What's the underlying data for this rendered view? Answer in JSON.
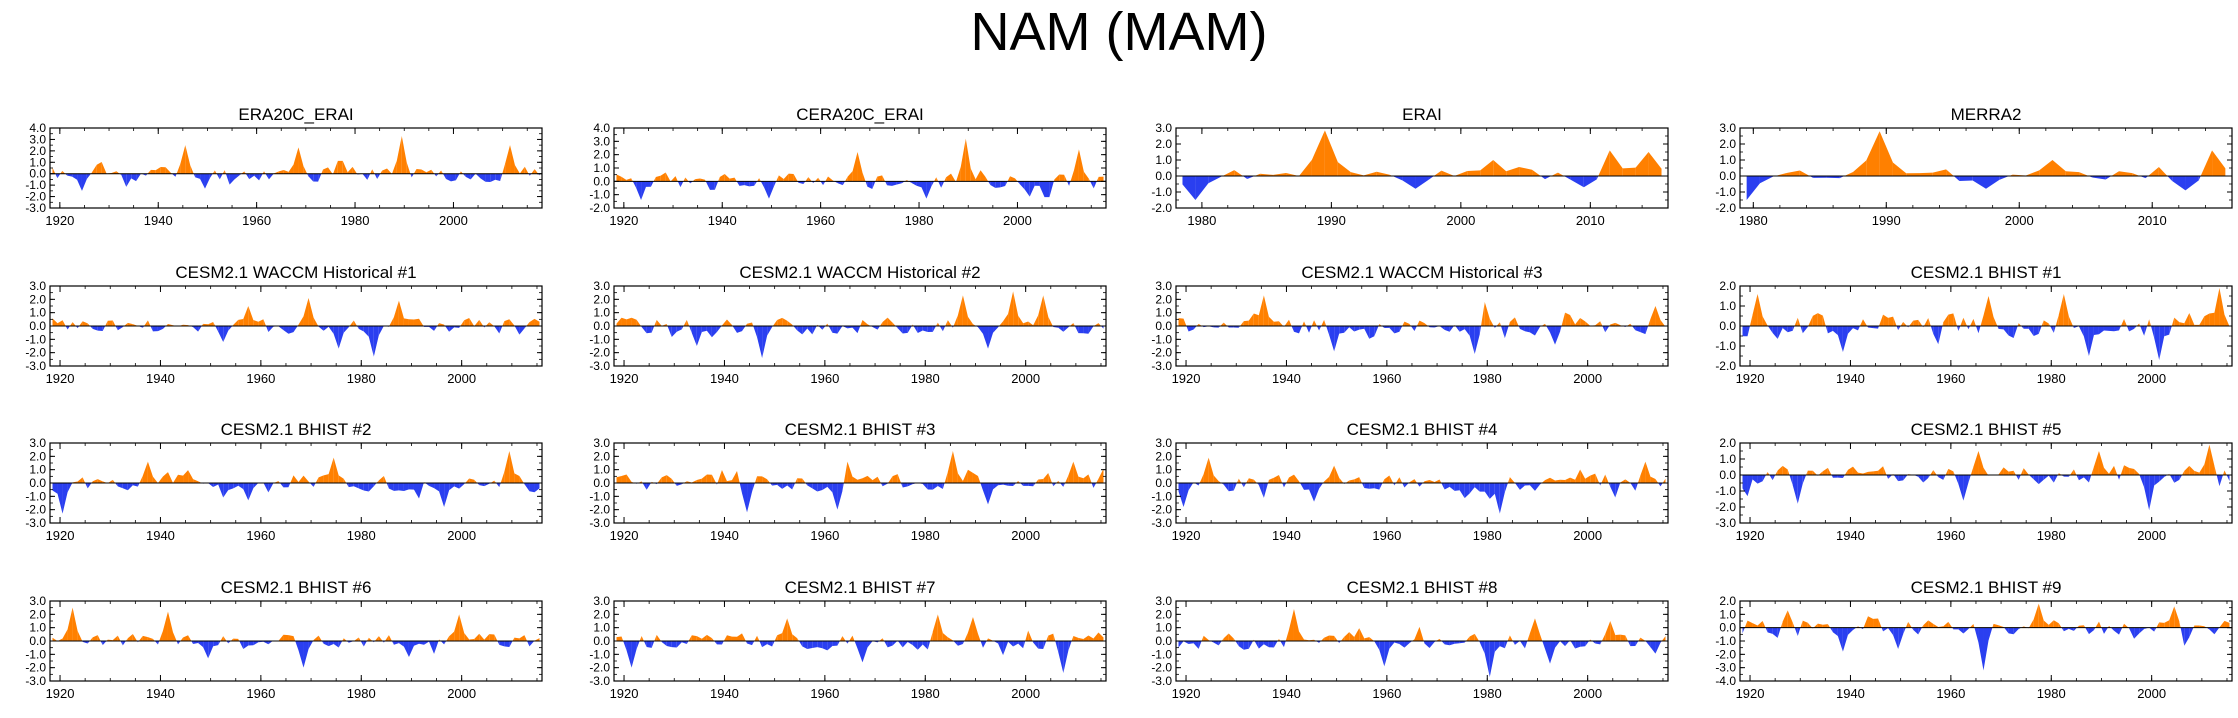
{
  "figure_title": "NAM (MAM)",
  "colors": {
    "positive": "#ff8000",
    "negative": "#2a3ff0",
    "axis": "#000000"
  },
  "chart_data": [
    {
      "type": "area",
      "title": "ERA20C_ERAI",
      "xlim": [
        1918,
        2018
      ],
      "ylim": [
        -3.0,
        4.0
      ],
      "yticks": [
        "4.0",
        "3.0",
        "2.0",
        "1.0",
        "0.0",
        "-1.0",
        "-2.0",
        "-3.0"
      ],
      "yvals": [
        4,
        3,
        2,
        1,
        0,
        -1,
        -2,
        -3
      ],
      "xticks": [
        1920,
        1940,
        1960,
        1980,
        2000
      ],
      "seed": 11,
      "amp": 1.0,
      "peaks": [
        [
          1990,
          3.3
        ],
        [
          2012,
          2.5
        ],
        [
          1946,
          2.5
        ],
        [
          1969,
          2.3
        ],
        [
          1925,
          -1.5
        ],
        [
          1950,
          -1.3
        ]
      ]
    },
    {
      "type": "area",
      "title": "CERA20C_ERAI",
      "xlim": [
        1918,
        2018
      ],
      "ylim": [
        -2.0,
        4.0
      ],
      "yticks": [
        "4.0",
        "3.0",
        "2.0",
        "1.0",
        "0.0",
        "-1.0",
        "-2.0"
      ],
      "yvals": [
        4,
        3,
        2,
        1,
        0,
        -1,
        -2
      ],
      "xticks": [
        1920,
        1940,
        1960,
        1980,
        2000
      ],
      "seed": 23,
      "amp": 0.9,
      "peaks": [
        [
          1990,
          3.2
        ],
        [
          2013,
          2.4
        ],
        [
          1968,
          2.2
        ],
        [
          1924,
          -1.4
        ],
        [
          1950,
          -1.3
        ],
        [
          1982,
          -1.3
        ]
      ]
    },
    {
      "type": "area",
      "title": "ERAI",
      "xlim": [
        1978,
        2016
      ],
      "ylim": [
        -2.0,
        3.0
      ],
      "yticks": [
        "3.0",
        "2.0",
        "1.0",
        "0.0",
        "-1.0",
        "-2.0"
      ],
      "yvals": [
        3,
        2,
        1,
        0,
        -1,
        -2
      ],
      "xticks": [
        1980,
        1990,
        2000,
        2010
      ],
      "step": 1,
      "seed": 31,
      "amp": 0.6,
      "peaks": [
        [
          1990,
          2.9
        ],
        [
          2012,
          1.6
        ],
        [
          2015,
          1.5
        ],
        [
          2003,
          1.0
        ],
        [
          1980,
          -1.5
        ],
        [
          1997,
          -0.8
        ],
        [
          2010,
          -0.7
        ]
      ]
    },
    {
      "type": "area",
      "title": "MERRA2",
      "xlim": [
        1979,
        2016
      ],
      "ylim": [
        -2.0,
        3.0
      ],
      "yticks": [
        "3.0",
        "2.0",
        "1.0",
        "0.0",
        "-1.0",
        "-2.0"
      ],
      "yvals": [
        3,
        2,
        1,
        0,
        -1,
        -2
      ],
      "xticks": [
        1980,
        1990,
        2000,
        2010
      ],
      "step": 1,
      "seed": 37,
      "amp": 0.6,
      "peaks": [
        [
          1990,
          2.8
        ],
        [
          2012,
          1.6
        ],
        [
          2015,
          1.6
        ],
        [
          2003,
          1.0
        ],
        [
          1980,
          -1.5
        ],
        [
          1998,
          -0.8
        ],
        [
          2013,
          -0.9
        ]
      ]
    },
    {
      "type": "area",
      "title": "CESM2.1 WACCM Historical #1",
      "xlim": [
        1918,
        2016
      ],
      "ylim": [
        -3.0,
        3.0
      ],
      "yticks": [
        "3.0",
        "2.0",
        "1.0",
        "0.0",
        "-1.0",
        "-2.0",
        "-3.0"
      ],
      "yvals": [
        3,
        2,
        1,
        0,
        -1,
        -2,
        -3
      ],
      "xticks": [
        1920,
        1940,
        1960,
        1980,
        2000
      ],
      "seed": 41,
      "amp": 0.9,
      "peaks": [
        [
          1970,
          2.1
        ],
        [
          1988,
          1.9
        ],
        [
          1958,
          1.5
        ],
        [
          1983,
          -2.3
        ],
        [
          1976,
          -1.7
        ],
        [
          1953,
          -1.2
        ]
      ]
    },
    {
      "type": "area",
      "title": "CESM2.1 WACCM Historical #2",
      "xlim": [
        1918,
        2016
      ],
      "ylim": [
        -3.0,
        3.0
      ],
      "yticks": [
        "3.0",
        "2.0",
        "1.0",
        "0.0",
        "-1.0",
        "-2.0",
        "-3.0"
      ],
      "yvals": [
        3,
        2,
        1,
        0,
        -1,
        -2,
        -3
      ],
      "xticks": [
        1920,
        1940,
        1960,
        1980,
        2000
      ],
      "seed": 43,
      "amp": 0.9,
      "peaks": [
        [
          1998,
          2.6
        ],
        [
          1988,
          2.3
        ],
        [
          2004,
          2.3
        ],
        [
          1948,
          -2.4
        ],
        [
          1935,
          -1.5
        ],
        [
          1993,
          -1.7
        ]
      ]
    },
    {
      "type": "area",
      "title": "CESM2.1 WACCM Historical #3",
      "xlim": [
        1918,
        2016
      ],
      "ylim": [
        -3.0,
        3.0
      ],
      "yticks": [
        "3.0",
        "2.0",
        "1.0",
        "0.0",
        "-1.0",
        "-2.0",
        "-3.0"
      ],
      "yvals": [
        3,
        2,
        1,
        0,
        -1,
        -2,
        -3
      ],
      "xticks": [
        1920,
        1940,
        1960,
        1980,
        2000
      ],
      "seed": 47,
      "amp": 0.9,
      "peaks": [
        [
          1936,
          2.3
        ],
        [
          1980,
          1.8
        ],
        [
          2014,
          1.5
        ],
        [
          1978,
          -2.1
        ],
        [
          1950,
          -1.9
        ],
        [
          1994,
          -1.4
        ]
      ]
    },
    {
      "type": "area",
      "title": "CESM2.1 BHIST #1",
      "xlim": [
        1918,
        2016
      ],
      "ylim": [
        -2.0,
        2.0
      ],
      "yticks": [
        "2.0",
        "1.0",
        "0.0",
        "-1.0",
        "-2.0"
      ],
      "yvals": [
        2,
        1,
        0,
        -1,
        -2
      ],
      "xticks": [
        1920,
        1940,
        1960,
        1980,
        2000
      ],
      "seed": 53,
      "amp": 0.8,
      "peaks": [
        [
          1922,
          1.6
        ],
        [
          1968,
          1.5
        ],
        [
          1983,
          1.6
        ],
        [
          2014,
          1.9
        ],
        [
          1939,
          -1.3
        ],
        [
          1988,
          -1.5
        ],
        [
          2002,
          -1.7
        ]
      ]
    },
    {
      "type": "area",
      "title": "CESM2.1 BHIST #2",
      "xlim": [
        1918,
        2016
      ],
      "ylim": [
        -3.0,
        3.0
      ],
      "yticks": [
        "3.0",
        "2.0",
        "1.0",
        "0.0",
        "-1.0",
        "-2.0",
        "-3.0"
      ],
      "yvals": [
        3,
        2,
        1,
        0,
        -1,
        -2,
        -3
      ],
      "xticks": [
        1920,
        1940,
        1960,
        1980,
        2000
      ],
      "seed": 59,
      "amp": 0.9,
      "peaks": [
        [
          2010,
          2.4
        ],
        [
          1975,
          1.9
        ],
        [
          1938,
          1.6
        ],
        [
          1921,
          -2.3
        ],
        [
          1997,
          -1.8
        ],
        [
          1958,
          -1.3
        ]
      ]
    },
    {
      "type": "area",
      "title": "CESM2.1 BHIST #3",
      "xlim": [
        1918,
        2016
      ],
      "ylim": [
        -3.0,
        3.0
      ],
      "yticks": [
        "3.0",
        "2.0",
        "1.0",
        "0.0",
        "-1.0",
        "-2.0",
        "-3.0"
      ],
      "yvals": [
        3,
        2,
        1,
        0,
        -1,
        -2,
        -3
      ],
      "xticks": [
        1920,
        1940,
        1960,
        1980,
        2000
      ],
      "seed": 61,
      "amp": 0.9,
      "peaks": [
        [
          1986,
          2.4
        ],
        [
          1965,
          1.6
        ],
        [
          2010,
          1.6
        ],
        [
          1945,
          -2.2
        ],
        [
          1963,
          -2.0
        ],
        [
          1993,
          -1.6
        ]
      ]
    },
    {
      "type": "area",
      "title": "CESM2.1 BHIST #4",
      "xlim": [
        1918,
        2016
      ],
      "ylim": [
        -3.0,
        3.0
      ],
      "yticks": [
        "3.0",
        "2.0",
        "1.0",
        "0.0",
        "-1.0",
        "-2.0",
        "-3.0"
      ],
      "yvals": [
        3,
        2,
        1,
        0,
        -1,
        -2,
        -3
      ],
      "xticks": [
        1920,
        1940,
        1960,
        1980,
        2000
      ],
      "seed": 67,
      "amp": 0.9,
      "peaks": [
        [
          1925,
          1.9
        ],
        [
          1950,
          1.3
        ],
        [
          2012,
          1.6
        ],
        [
          1983,
          -2.3
        ],
        [
          1920,
          -1.8
        ],
        [
          1946,
          -1.4
        ]
      ]
    },
    {
      "type": "area",
      "title": "CESM2.1 BHIST #5",
      "xlim": [
        1918,
        2016
      ],
      "ylim": [
        -3.0,
        2.0
      ],
      "yticks": [
        "2.0",
        "1.0",
        "0.0",
        "-1.0",
        "-2.0",
        "-3.0"
      ],
      "yvals": [
        2,
        1,
        0,
        -1,
        -2,
        -3
      ],
      "xticks": [
        1920,
        1940,
        1960,
        1980,
        2000
      ],
      "seed": 71,
      "amp": 0.8,
      "peaks": [
        [
          2012,
          1.9
        ],
        [
          1966,
          1.5
        ],
        [
          1990,
          1.5
        ],
        [
          2000,
          -2.2
        ],
        [
          1930,
          -1.8
        ],
        [
          1963,
          -1.6
        ]
      ]
    },
    {
      "type": "area",
      "title": "CESM2.1 BHIST #6",
      "xlim": [
        1918,
        2016
      ],
      "ylim": [
        -3.0,
        3.0
      ],
      "yticks": [
        "3.0",
        "2.0",
        "1.0",
        "0.0",
        "-1.0",
        "-2.0",
        "-3.0"
      ],
      "yvals": [
        3,
        2,
        1,
        0,
        -1,
        -2,
        -3
      ],
      "xticks": [
        1920,
        1940,
        1960,
        1980,
        2000
      ],
      "seed": 73,
      "amp": 0.8,
      "peaks": [
        [
          1923,
          2.5
        ],
        [
          1942,
          2.2
        ],
        [
          2000,
          2.0
        ],
        [
          1969,
          -2.0
        ],
        [
          1950,
          -1.3
        ],
        [
          1990,
          -1.2
        ]
      ]
    },
    {
      "type": "area",
      "title": "CESM2.1 BHIST #7",
      "xlim": [
        1918,
        2016
      ],
      "ylim": [
        -3.0,
        3.0
      ],
      "yticks": [
        "3.0",
        "2.0",
        "1.0",
        "0.0",
        "-1.0",
        "-2.0",
        "-3.0"
      ],
      "yvals": [
        3,
        2,
        1,
        0,
        -1,
        -2,
        -3
      ],
      "xticks": [
        1920,
        1940,
        1960,
        1980,
        2000
      ],
      "seed": 79,
      "amp": 0.9,
      "peaks": [
        [
          1983,
          2.0
        ],
        [
          1953,
          1.7
        ],
        [
          1990,
          1.8
        ],
        [
          2008,
          -2.4
        ],
        [
          1922,
          -2.0
        ],
        [
          1968,
          -1.6
        ]
      ]
    },
    {
      "type": "area",
      "title": "CESM2.1 BHIST #8",
      "xlim": [
        1918,
        2016
      ],
      "ylim": [
        -3.0,
        3.0
      ],
      "yticks": [
        "3.0",
        "2.0",
        "1.0",
        "0.0",
        "-1.0",
        "-2.0",
        "-3.0"
      ],
      "yvals": [
        3,
        2,
        1,
        0,
        -1,
        -2,
        -3
      ],
      "xticks": [
        1920,
        1940,
        1960,
        1980,
        2000
      ],
      "seed": 83,
      "amp": 0.9,
      "peaks": [
        [
          1942,
          2.4
        ],
        [
          1990,
          1.7
        ],
        [
          2005,
          1.5
        ],
        [
          1981,
          -2.7
        ],
        [
          1960,
          -1.9
        ],
        [
          1993,
          -1.7
        ]
      ]
    },
    {
      "type": "area",
      "title": "CESM2.1 BHIST #9",
      "xlim": [
        1918,
        2016
      ],
      "ylim": [
        -4.0,
        2.0
      ],
      "yticks": [
        "2.0",
        "1.0",
        "0.0",
        "-1.0",
        "-2.0",
        "-3.0",
        "-4.0"
      ],
      "yvals": [
        2,
        1,
        0,
        -1,
        -2,
        -3,
        -4
      ],
      "xticks": [
        1920,
        1940,
        1960,
        1980,
        2000
      ],
      "seed": 89,
      "amp": 0.8,
      "peaks": [
        [
          1978,
          1.8
        ],
        [
          2005,
          1.6
        ],
        [
          1928,
          1.3
        ],
        [
          1967,
          -3.2
        ],
        [
          1939,
          -1.8
        ],
        [
          1950,
          -1.6
        ]
      ]
    }
  ]
}
